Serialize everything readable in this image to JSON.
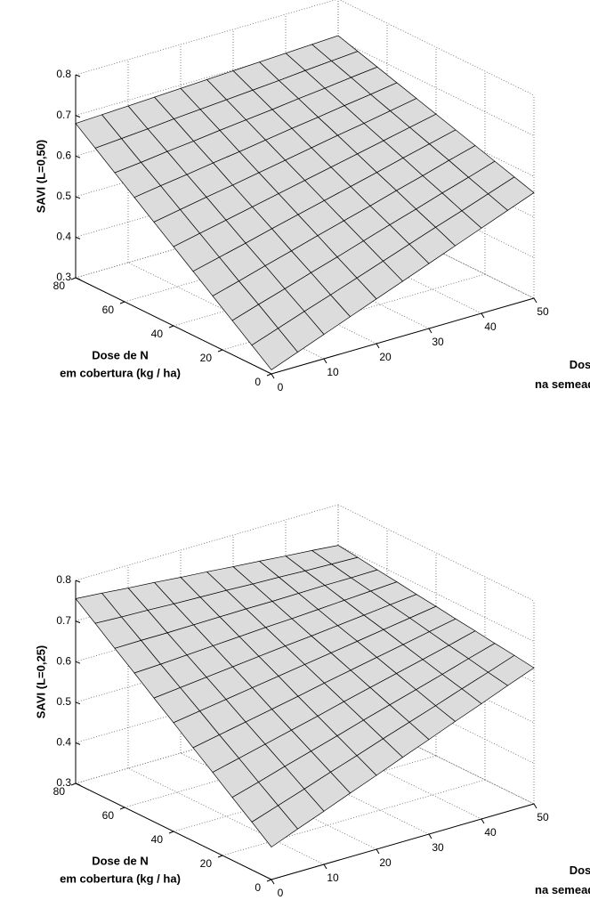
{
  "chart_data": [
    {
      "type": "surface",
      "zlabel": "SAVI (L=0,50)",
      "xlabel": [
        "Dose de N",
        "na semeadura (kg / ha)"
      ],
      "ylabel": [
        "Dose de N",
        "em cobertura (kg / ha)"
      ],
      "xlim": [
        0,
        50
      ],
      "xticks": [
        0,
        10,
        20,
        30,
        40,
        50
      ],
      "ylim": [
        0,
        80
      ],
      "yticks": [
        0,
        20,
        40,
        60,
        80
      ],
      "zlim": [
        0.3,
        0.8
      ],
      "zticks": [
        0.3,
        0.4,
        0.5,
        0.6,
        0.7,
        0.8
      ],
      "grid": true,
      "color": "#dcdcdc",
      "x": [
        0,
        5,
        10,
        15,
        20,
        25,
        30,
        35,
        40,
        45,
        50
      ],
      "y": [
        0,
        8,
        16,
        24,
        32,
        40,
        48,
        56,
        64,
        72,
        80
      ],
      "z": [
        [
          0.31,
          0.335,
          0.36,
          0.385,
          0.41,
          0.435,
          0.46,
          0.485,
          0.51,
          0.535,
          0.56
        ],
        [
          0.347,
          0.37,
          0.393,
          0.415,
          0.438,
          0.461,
          0.484,
          0.507,
          0.529,
          0.552,
          0.575
        ],
        [
          0.384,
          0.405,
          0.425,
          0.446,
          0.466,
          0.487,
          0.508,
          0.528,
          0.549,
          0.569,
          0.59
        ],
        [
          0.421,
          0.439,
          0.458,
          0.476,
          0.495,
          0.513,
          0.531,
          0.55,
          0.568,
          0.587,
          0.605
        ],
        [
          0.458,
          0.474,
          0.49,
          0.507,
          0.523,
          0.539,
          0.555,
          0.571,
          0.588,
          0.604,
          0.62
        ],
        [
          0.495,
          0.509,
          0.523,
          0.537,
          0.551,
          0.565,
          0.579,
          0.593,
          0.607,
          0.621,
          0.635
        ],
        [
          0.532,
          0.544,
          0.556,
          0.567,
          0.579,
          0.591,
          0.603,
          0.615,
          0.626,
          0.638,
          0.65
        ],
        [
          0.569,
          0.579,
          0.588,
          0.598,
          0.607,
          0.617,
          0.627,
          0.636,
          0.646,
          0.655,
          0.665
        ],
        [
          0.606,
          0.613,
          0.621,
          0.628,
          0.636,
          0.643,
          0.65,
          0.658,
          0.665,
          0.673,
          0.68
        ],
        [
          0.643,
          0.648,
          0.653,
          0.659,
          0.664,
          0.669,
          0.674,
          0.679,
          0.685,
          0.69,
          0.695
        ],
        [
          0.68,
          0.683,
          0.686,
          0.689,
          0.692,
          0.695,
          0.698,
          0.701,
          0.704,
          0.707,
          0.71
        ]
      ]
    },
    {
      "type": "surface",
      "zlabel": "SAVI (L=0,25)",
      "xlabel": [
        "Dose de N",
        "na semeadura (kg / ha)"
      ],
      "ylabel": [
        "Dose de N",
        "em cobertura (kg / ha)"
      ],
      "xlim": [
        0,
        50
      ],
      "xticks": [
        0,
        10,
        20,
        30,
        40,
        50
      ],
      "ylim": [
        0,
        80
      ],
      "yticks": [
        0,
        20,
        40,
        60,
        80
      ],
      "zlim": [
        0.3,
        0.8
      ],
      "zticks": [
        0.3,
        0.4,
        0.5,
        0.6,
        0.7,
        0.8
      ],
      "grid": true,
      "color": "#dcdcdc",
      "x": [
        0,
        5,
        10,
        15,
        20,
        25,
        30,
        35,
        40,
        45,
        50
      ],
      "y": [
        0,
        8,
        16,
        24,
        32,
        40,
        48,
        56,
        64,
        72,
        80
      ],
      "z": [
        [
          0.38,
          0.406,
          0.431,
          0.457,
          0.482,
          0.508,
          0.533,
          0.559,
          0.584,
          0.61,
          0.635
        ],
        [
          0.418,
          0.44,
          0.462,
          0.485,
          0.507,
          0.53,
          0.552,
          0.574,
          0.597,
          0.619,
          0.642
        ],
        [
          0.455,
          0.474,
          0.494,
          0.513,
          0.532,
          0.552,
          0.571,
          0.59,
          0.609,
          0.629,
          0.648
        ],
        [
          0.493,
          0.509,
          0.525,
          0.541,
          0.557,
          0.574,
          0.59,
          0.606,
          0.622,
          0.638,
          0.655
        ],
        [
          0.53,
          0.543,
          0.556,
          0.569,
          0.582,
          0.596,
          0.609,
          0.622,
          0.635,
          0.648,
          0.661
        ],
        [
          0.568,
          0.578,
          0.588,
          0.598,
          0.608,
          0.618,
          0.628,
          0.638,
          0.648,
          0.658,
          0.668
        ],
        [
          0.605,
          0.612,
          0.619,
          0.626,
          0.633,
          0.64,
          0.646,
          0.653,
          0.66,
          0.667,
          0.674
        ],
        [
          0.643,
          0.646,
          0.65,
          0.654,
          0.658,
          0.662,
          0.665,
          0.669,
          0.673,
          0.677,
          0.681
        ],
        [
          0.68,
          0.681,
          0.681,
          0.682,
          0.683,
          0.684,
          0.684,
          0.685,
          0.686,
          0.686,
          0.687
        ],
        [
          0.718,
          0.715,
          0.713,
          0.71,
          0.708,
          0.706,
          0.703,
          0.701,
          0.698,
          0.696,
          0.694
        ],
        [
          0.755,
          0.75,
          0.744,
          0.739,
          0.733,
          0.728,
          0.722,
          0.717,
          0.711,
          0.706,
          0.7
        ]
      ]
    }
  ]
}
